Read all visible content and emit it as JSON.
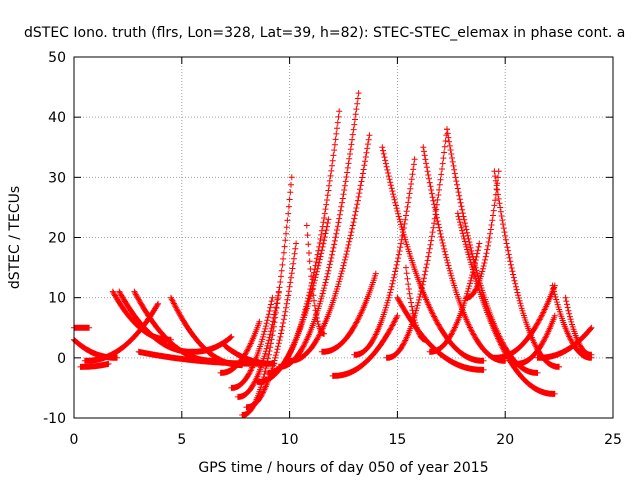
{
  "chart_data": {
    "type": "scatter",
    "title": "dSTEC Iono. truth (flrs, Lon=328, Lat=39, h=82): STEC-STEC_elemax in phase cont. a",
    "xlabel": "GPS time / hours of day 050 of year 2015",
    "ylabel": "dSTEC  / TECUs",
    "xlim": [
      0,
      25
    ],
    "ylim": [
      -10,
      50
    ],
    "xticks": [
      "0",
      "5",
      "10",
      "15",
      "20",
      "25"
    ],
    "yticks": [
      "-10",
      "0",
      "10",
      "20",
      "30",
      "40",
      "50"
    ],
    "grid": true,
    "marker": "+",
    "color": "#ff0000",
    "tracks": [
      {
        "t0": 0.0,
        "t1": 0.7,
        "tPeak": 0.0,
        "peak": 5,
        "end": 5,
        "min": -1.2
      },
      {
        "t0": 0.3,
        "t1": 1.6,
        "tPeak": 1.3,
        "peak": -1,
        "end": 5,
        "min": -1.5
      },
      {
        "t0": 0.0,
        "t1": 2.0,
        "tPeak": 0.0,
        "peak": 3,
        "end": 0,
        "min": -0.5
      },
      {
        "t0": 1.8,
        "t1": 4.5,
        "tPeak": 1.8,
        "peak": 11,
        "end": 3,
        "min": 0.3
      },
      {
        "t0": 2.1,
        "t1": 5.5,
        "tPeak": 2.1,
        "peak": 11,
        "end": 1,
        "min": 0.4
      },
      {
        "t0": 2.8,
        "t1": 6.5,
        "tPeak": 2.8,
        "peak": 11,
        "end": -0.5,
        "min": -0.4
      },
      {
        "t0": 0.5,
        "t1": 3.9,
        "tPeak": 3.9,
        "peak": 9,
        "end": 9,
        "min": -0.5
      },
      {
        "t0": 4.5,
        "t1": 7.8,
        "tPeak": 4.5,
        "peak": 10,
        "end": -1.2,
        "min": -1.0
      },
      {
        "t0": 5.5,
        "t1": 7.3,
        "tPeak": 5.6,
        "peak": 3.5,
        "end": 4.5,
        "min": 1.0
      },
      {
        "t0": 6.8,
        "t1": 8.6,
        "tPeak": 8.6,
        "peak": 6,
        "end": 6,
        "min": -2.5
      },
      {
        "t0": 7.0,
        "t1": 9.3,
        "tPeak": 7.0,
        "peak": 2,
        "end": -1,
        "min": -4.2
      },
      {
        "t0": 7.3,
        "t1": 9.2,
        "tPeak": 9.2,
        "peak": 10,
        "end": 10,
        "min": -5.0
      },
      {
        "t0": 7.6,
        "t1": 9.5,
        "tPeak": 9.5,
        "peak": 11,
        "end": 11,
        "min": -6.5
      },
      {
        "t0": 7.8,
        "t1": 10.1,
        "tPeak": 10.1,
        "peak": 30,
        "end": 30,
        "min": -9.5
      },
      {
        "t0": 8.0,
        "t1": 10.3,
        "tPeak": 10.3,
        "peak": 19,
        "end": 19,
        "min": -8.2
      },
      {
        "t0": 8.5,
        "t1": 11.8,
        "tPeak": 11.8,
        "peak": 23,
        "end": 23,
        "min": -4.0
      },
      {
        "t0": 9.0,
        "t1": 12.3,
        "tPeak": 12.3,
        "peak": 41,
        "end": 41,
        "min": -2.5
      },
      {
        "t0": 9.5,
        "t1": 13.2,
        "tPeak": 13.2,
        "peak": 44,
        "end": 44,
        "min": -1.5
      },
      {
        "t0": 10.0,
        "t1": 13.7,
        "tPeak": 13.7,
        "peak": 37,
        "end": 37,
        "min": -0.5
      },
      {
        "t0": 10.8,
        "t1": 11.6,
        "tPeak": 10.8,
        "peak": 22,
        "end": 4,
        "min": 4.0
      },
      {
        "t0": 11.5,
        "t1": 14.0,
        "tPeak": 14.0,
        "peak": 14,
        "end": 14,
        "min": 1.0
      },
      {
        "t0": 14.3,
        "t1": 19.0,
        "tPeak": 14.3,
        "peak": 35,
        "end": -0.5,
        "min": -0.5
      },
      {
        "t0": 13.0,
        "t1": 15.8,
        "tPeak": 15.8,
        "peak": 33,
        "end": 33,
        "min": 0.5
      },
      {
        "t0": 15.4,
        "t1": 16.3,
        "tPeak": 15.4,
        "peak": 15,
        "end": 3,
        "min": 3.0
      },
      {
        "t0": 16.2,
        "t1": 20.0,
        "tPeak": 16.2,
        "peak": 35,
        "end": -0.5,
        "min": -0.5
      },
      {
        "t0": 14.5,
        "t1": 17.3,
        "tPeak": 17.3,
        "peak": 38,
        "end": 38,
        "min": 0.0
      },
      {
        "t0": 17.3,
        "t1": 21.5,
        "tPeak": 17.3,
        "peak": 38,
        "end": -2.5,
        "min": -2.5
      },
      {
        "t0": 17.8,
        "t1": 22.3,
        "tPeak": 17.8,
        "peak": 24,
        "end": -6,
        "min": -6.0
      },
      {
        "t0": 18.2,
        "t1": 19.7,
        "tPeak": 19.7,
        "peak": 31,
        "end": 31,
        "min": 10
      },
      {
        "t0": 19.5,
        "t1": 22.5,
        "tPeak": 19.5,
        "peak": 31,
        "end": -1.5,
        "min": -1.5
      },
      {
        "t0": 16.5,
        "t1": 18.8,
        "tPeak": 18.8,
        "peak": 19,
        "end": 19,
        "min": 1.0
      },
      {
        "t0": 19.5,
        "t1": 22.3,
        "tPeak": 22.3,
        "peak": 12,
        "end": 12,
        "min": 0.0
      },
      {
        "t0": 20.5,
        "t1": 22.3,
        "tPeak": 22.3,
        "peak": 7,
        "end": 7,
        "min": -1.0
      },
      {
        "t0": 22.2,
        "t1": 24.0,
        "tPeak": 22.2,
        "peak": 12,
        "end": 0,
        "min": 0.0
      },
      {
        "t0": 22.8,
        "t1": 24.0,
        "tPeak": 22.8,
        "peak": 10,
        "end": 0.5,
        "min": 0.5
      },
      {
        "t0": 21.5,
        "t1": 24.0,
        "tPeak": 24.0,
        "peak": 5,
        "end": 5,
        "min": 0.0
      },
      {
        "t0": 12.0,
        "t1": 15.0,
        "tPeak": 15.0,
        "peak": 7,
        "end": 7,
        "min": -3.0
      },
      {
        "t0": 15.0,
        "t1": 19.0,
        "tPeak": 15.0,
        "peak": 10,
        "end": -2,
        "min": -2.0
      },
      {
        "t0": 3.0,
        "t1": 9.0,
        "tPeak": 3.0,
        "peak": 1,
        "end": -1,
        "min": -1.0
      }
    ]
  }
}
